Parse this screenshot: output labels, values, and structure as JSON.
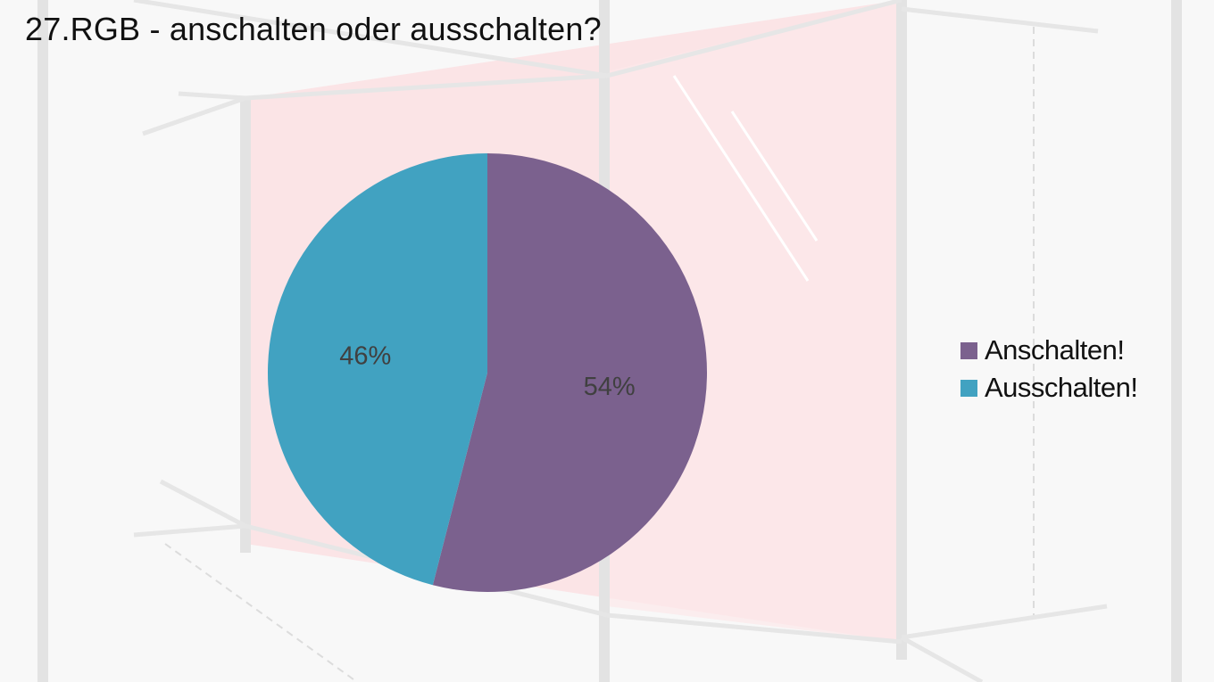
{
  "slide": {
    "title": "27.RGB - anschalten oder ausschalten?"
  },
  "chart_data": {
    "type": "pie",
    "title": "",
    "slices": [
      {
        "label": "Anschalten!",
        "value": 54,
        "display": "54%",
        "color": "#7b618e"
      },
      {
        "label": "Ausschalten!",
        "value": 46,
        "display": "46%",
        "color": "#41a2c1"
      }
    ],
    "start_angle_deg": 0,
    "direction": "clockwise",
    "data_labels": true,
    "legend_position": "right"
  },
  "colors": {
    "background": "#f7f7f7",
    "background_accent": "#fbe5e6",
    "data_label_text": "#404040"
  }
}
